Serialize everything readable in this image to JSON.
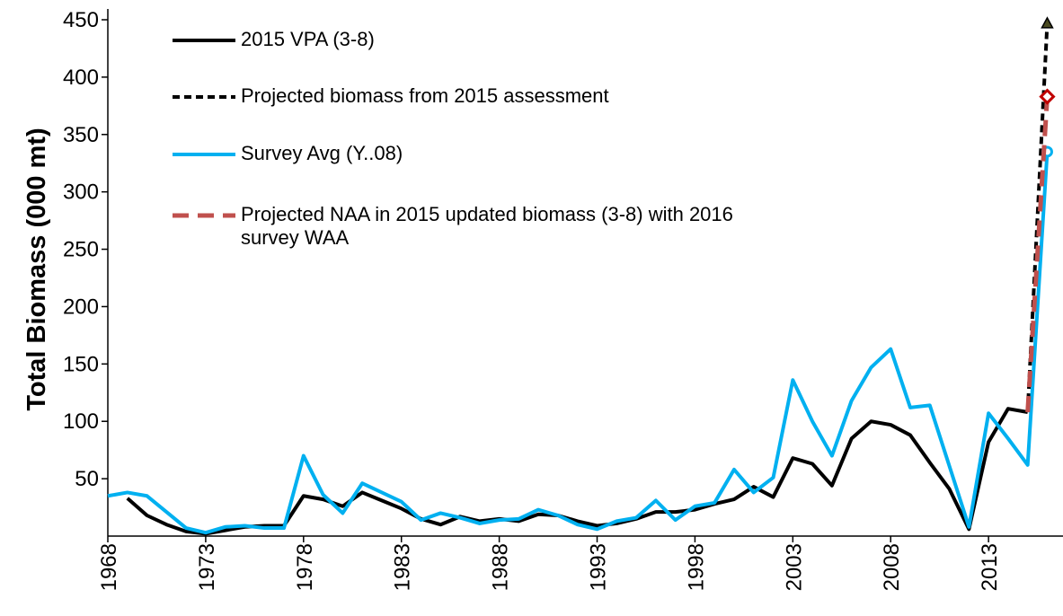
{
  "chart_data": {
    "type": "line",
    "y_label": "Total Biomass (000 mt)",
    "x": [
      1968,
      1969,
      1970,
      1971,
      1972,
      1973,
      1974,
      1975,
      1976,
      1977,
      1978,
      1979,
      1980,
      1981,
      1982,
      1983,
      1984,
      1985,
      1986,
      1987,
      1988,
      1989,
      1990,
      1991,
      1992,
      1993,
      1994,
      1995,
      1996,
      1997,
      1998,
      1999,
      2000,
      2001,
      2002,
      2003,
      2004,
      2005,
      2006,
      2007,
      2008,
      2009,
      2010,
      2011,
      2012,
      2013,
      2014,
      2015,
      2016
    ],
    "xlim": [
      1968,
      2016.3
    ],
    "xticks": [
      1968,
      1973,
      1978,
      1983,
      1988,
      1993,
      1998,
      2003,
      2008,
      2013
    ],
    "ylim": [
      0,
      450
    ],
    "yticks": [
      50,
      100,
      150,
      200,
      250,
      300,
      350,
      400,
      450
    ],
    "series": [
      {
        "name": "2015 VPA (3-8)",
        "color": "#000000",
        "dash": "solid",
        "marker": null,
        "values": [
          null,
          33,
          18,
          10,
          4,
          2,
          5,
          8,
          9,
          9,
          35,
          32,
          26,
          38,
          31,
          24,
          15,
          10,
          17,
          13,
          15,
          13,
          19,
          18,
          13,
          9,
          11,
          15,
          21,
          21,
          23,
          28,
          32,
          43,
          34,
          68,
          63,
          44,
          85,
          100,
          97,
          88,
          64,
          41,
          6,
          82,
          111,
          108,
          null
        ]
      },
      {
        "name": "Projected biomass from 2015 assessment",
        "color": "#000000",
        "dash": "dashed",
        "marker": "triangle",
        "values": [
          null,
          null,
          null,
          null,
          null,
          null,
          null,
          null,
          null,
          null,
          null,
          null,
          null,
          null,
          null,
          null,
          null,
          null,
          null,
          null,
          null,
          null,
          null,
          null,
          null,
          null,
          null,
          null,
          null,
          null,
          null,
          null,
          null,
          null,
          null,
          null,
          null,
          null,
          null,
          null,
          null,
          null,
          null,
          null,
          null,
          null,
          null,
          108,
          447
        ]
      },
      {
        "name": "Survey Avg (Y..08)",
        "color": "#00b0f0",
        "dash": "solid",
        "marker": "circle",
        "values": [
          35,
          38,
          35,
          21,
          7,
          3,
          8,
          9,
          7,
          7,
          70,
          36,
          20,
          46,
          38,
          30,
          14,
          20,
          16,
          11,
          14,
          15,
          23,
          18,
          10,
          6,
          13,
          16,
          31,
          14,
          26,
          29,
          58,
          38,
          51,
          136,
          100,
          70,
          118,
          147,
          163,
          112,
          114,
          61,
          8,
          107,
          85,
          62,
          335
        ]
      },
      {
        "name": "Projected NAA in 2015 updated biomass (3-8) with 2016 survey WAA",
        "color": "#c0504d",
        "dash": "longdash",
        "marker": "diamond",
        "values": [
          null,
          null,
          null,
          null,
          null,
          null,
          null,
          null,
          null,
          null,
          null,
          null,
          null,
          null,
          null,
          null,
          null,
          null,
          null,
          null,
          null,
          null,
          null,
          null,
          null,
          null,
          null,
          null,
          null,
          null,
          null,
          null,
          null,
          null,
          null,
          null,
          null,
          null,
          null,
          null,
          null,
          null,
          null,
          null,
          null,
          null,
          null,
          108,
          383
        ]
      }
    ]
  }
}
